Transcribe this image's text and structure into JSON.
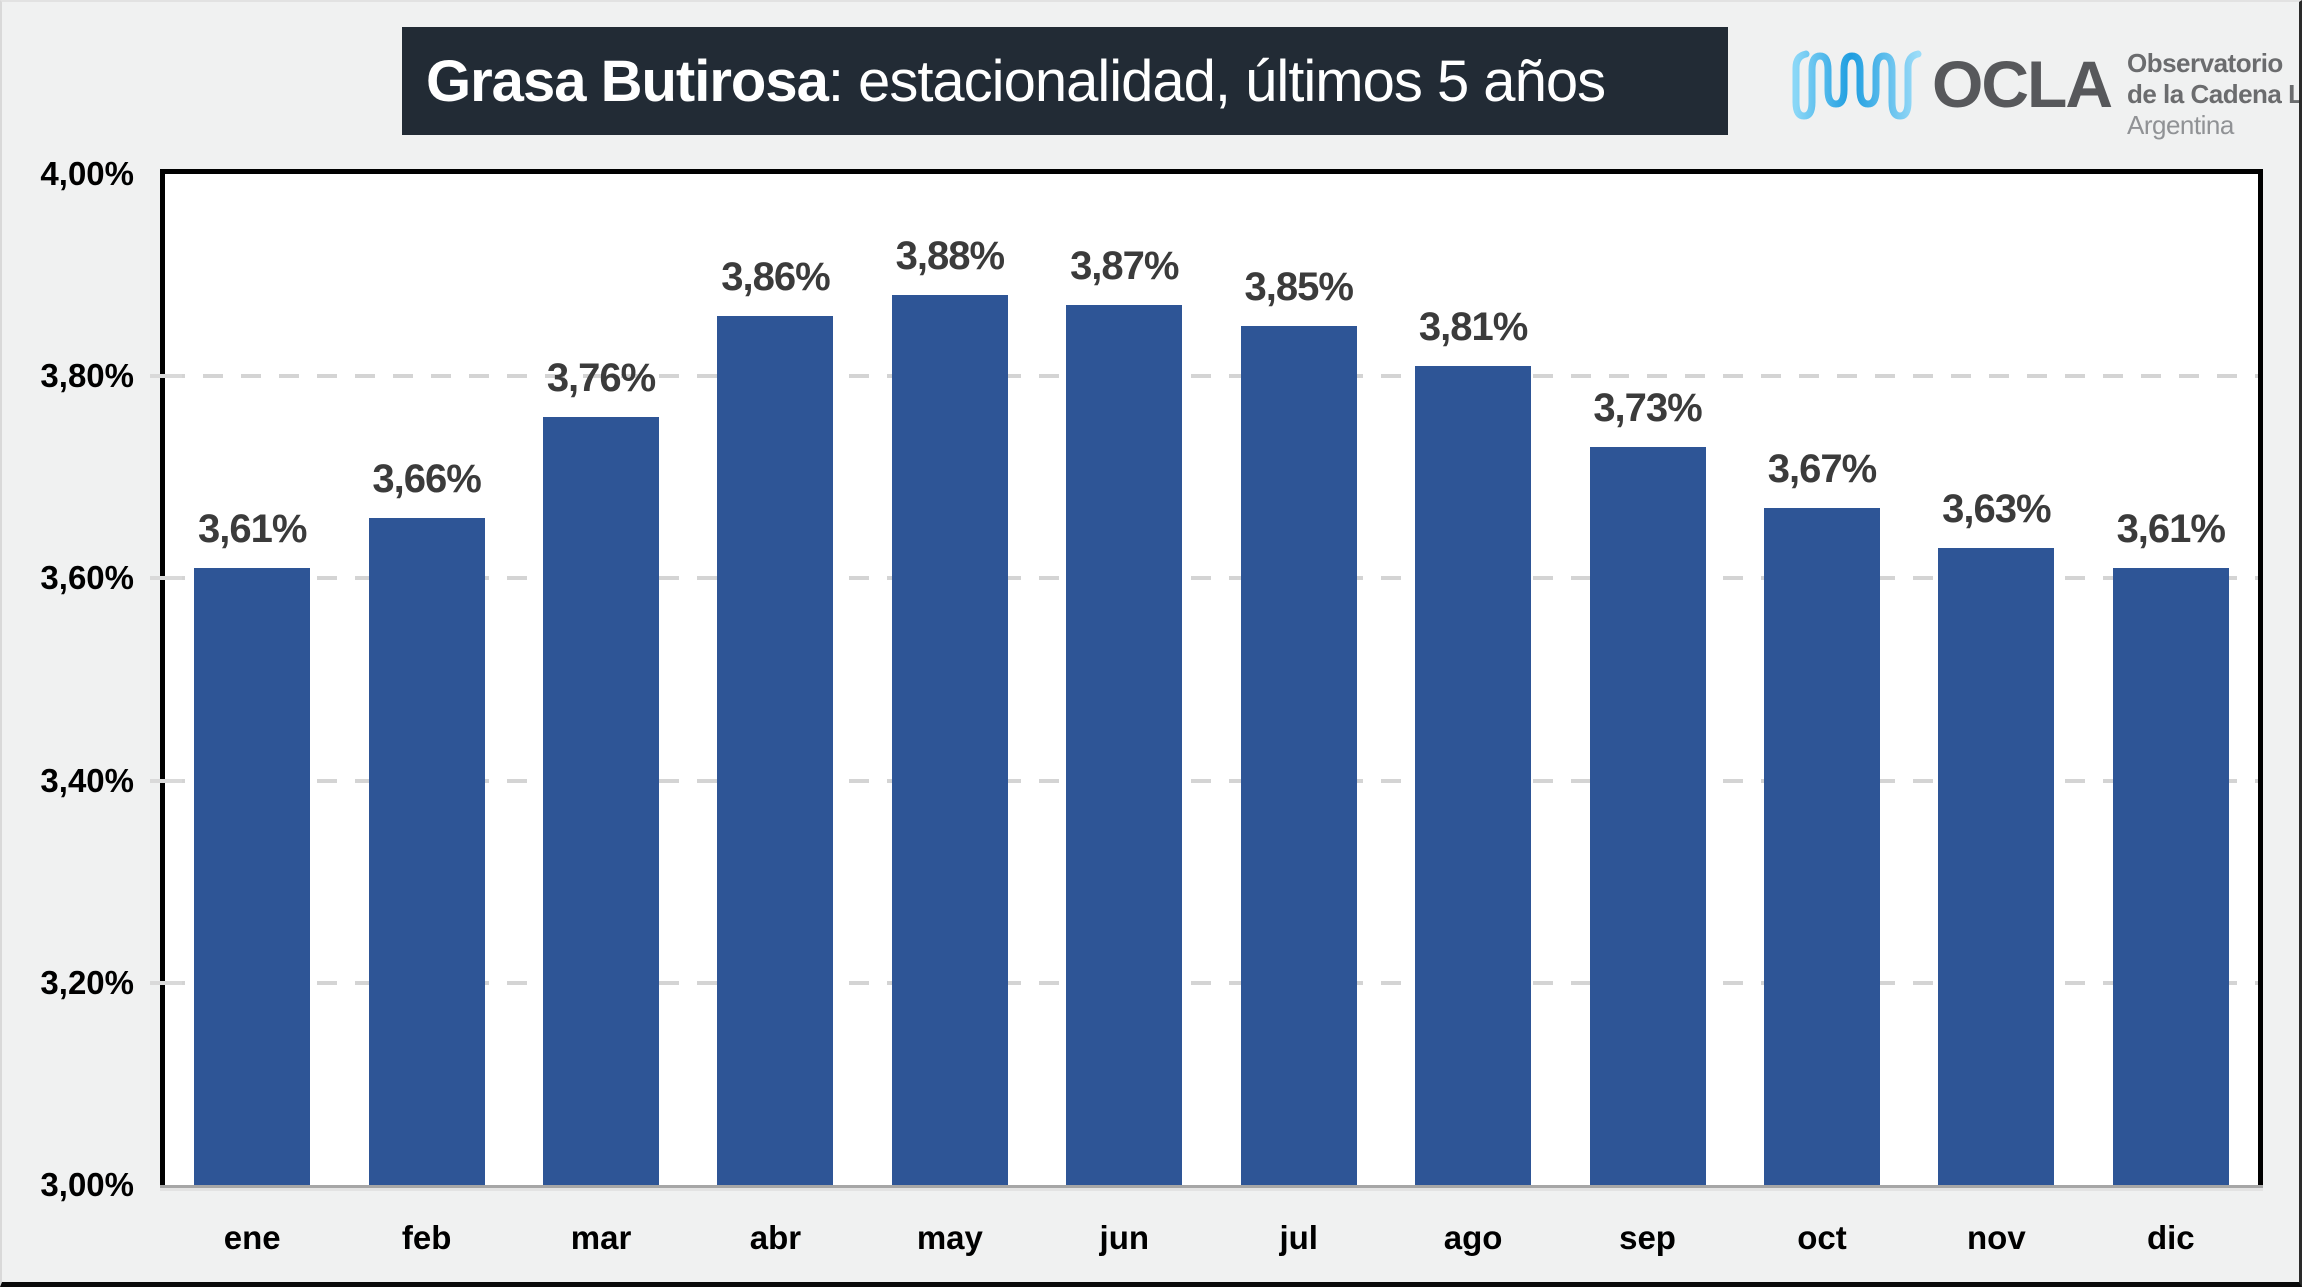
{
  "title": {
    "bold": "Grasa Butirosa",
    "rest": ": estacionalidad, últimos 5 años"
  },
  "logo": {
    "acronym": "OCLA",
    "line1": "Observatorio",
    "line2": "de la Cadena Láctea",
    "line3": "Argentina"
  },
  "chart_data": {
    "type": "bar",
    "title": "Grasa Butirosa: estacionalidad, últimos 5 años",
    "categories": [
      "ene",
      "feb",
      "mar",
      "abr",
      "may",
      "jun",
      "jul",
      "ago",
      "sep",
      "oct",
      "nov",
      "dic"
    ],
    "values": [
      3.61,
      3.66,
      3.76,
      3.86,
      3.88,
      3.87,
      3.85,
      3.81,
      3.73,
      3.67,
      3.63,
      3.61
    ],
    "value_labels": [
      "3,61%",
      "3,66%",
      "3,76%",
      "3,86%",
      "3,88%",
      "3,87%",
      "3,85%",
      "3,81%",
      "3,73%",
      "3,67%",
      "3,63%",
      "3,61%"
    ],
    "xlabel": "",
    "ylabel": "",
    "ylim": [
      3.0,
      4.0
    ],
    "ytick_values": [
      4.0,
      3.8,
      3.6,
      3.4,
      3.2,
      3.0
    ],
    "ytick_labels": [
      "4,00%",
      "3,80%",
      "3,60%",
      "3,40%",
      "3,20%",
      "3,00%"
    ],
    "grid": "horizontal-dashed",
    "legend": "none",
    "bar_color": "#2E5596"
  },
  "colors": {
    "background": "#F0F1F1",
    "plot_background": "#FFFFFF",
    "title_background": "#222B35",
    "title_text": "#FFFFFF",
    "bar": "#2E5596",
    "gridline": "#D4D4D4",
    "data_label": "#3B3B3B",
    "logo_text": "#57585B",
    "logo_text_light": "#909295",
    "logo_wave_light": "#8AD7F7",
    "logo_wave_dark": "#1E9DE0"
  }
}
